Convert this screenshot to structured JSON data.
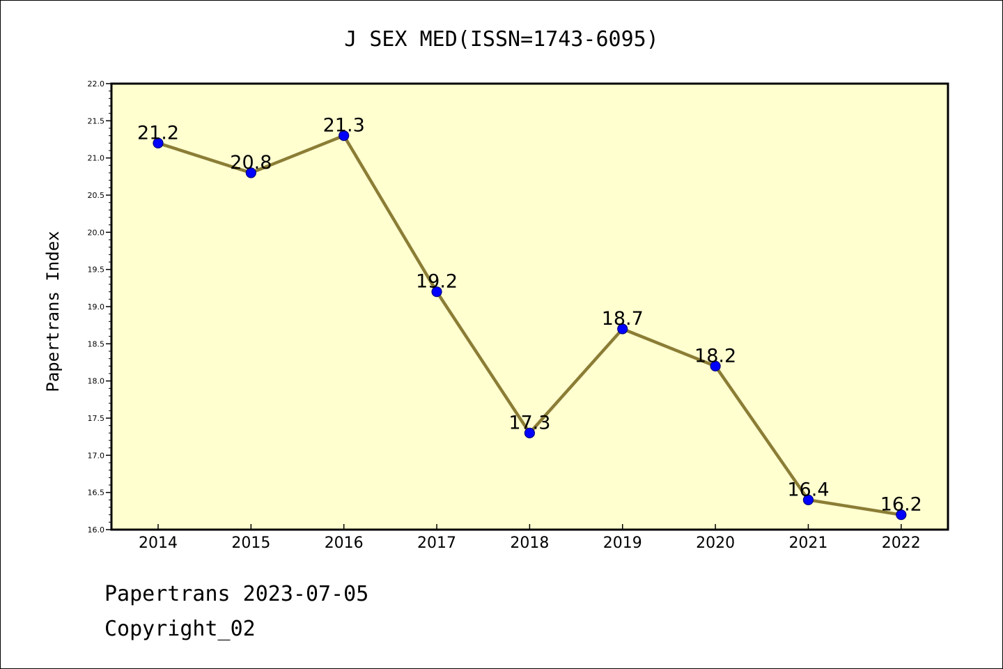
{
  "chart_data": {
    "type": "line",
    "title": "J SEX MED(ISSN=1743-6095)",
    "ylabel": "Papertrans Index",
    "xlabel": "",
    "categories": [
      "2014",
      "2015",
      "2016",
      "2017",
      "2018",
      "2019",
      "2020",
      "2021",
      "2022"
    ],
    "values": [
      21.2,
      20.8,
      21.3,
      19.2,
      17.3,
      18.7,
      18.2,
      16.4,
      16.2
    ],
    "data_labels": [
      "21.2",
      "20.8",
      "21.3",
      "19.2",
      "17.3",
      "18.7",
      "18.2",
      "16.4",
      "16.2"
    ],
    "ylim": [
      16.0,
      22.0
    ],
    "yticks": [
      "16.0",
      "16.5",
      "17.0",
      "17.5",
      "18.0",
      "18.5",
      "19.0",
      "19.5",
      "20.0",
      "20.5",
      "21.0",
      "21.5",
      "22.0"
    ],
    "grid": false,
    "legend": "none",
    "colors": {
      "plot_background": "#ffffd0",
      "line": "#8b7d35",
      "marker_fill": "#0000ff",
      "marker_edge": "#000080"
    }
  },
  "footer": {
    "line1": "Papertrans 2023-07-05",
    "line2": "Copyright_02"
  }
}
